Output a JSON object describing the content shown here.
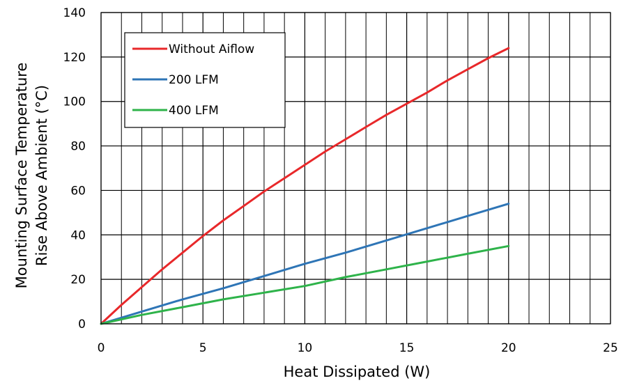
{
  "chart_data": {
    "type": "line",
    "title": "",
    "xlabel": "Heat Dissipated (W)",
    "ylabel_line1": "Mounting Surface Temperature",
    "ylabel_line2": "Rise Above  Ambient (°C)",
    "xlim": [
      0,
      25
    ],
    "ylim": [
      0,
      140
    ],
    "x_major_ticks": [
      0,
      5,
      10,
      15,
      20,
      25
    ],
    "x_minor_step": 1,
    "y_ticks": [
      0,
      20,
      40,
      60,
      80,
      100,
      120,
      140
    ],
    "grid": true,
    "legend_position": "top-left",
    "series": [
      {
        "name": "Without Aiflow",
        "color": "#e8282a",
        "x": [
          0,
          1,
          2,
          3,
          4,
          5,
          6,
          7,
          8,
          9,
          10,
          11,
          12,
          13,
          14,
          15,
          16,
          17,
          18,
          19,
          20
        ],
        "y": [
          0,
          8.5,
          16.5,
          24.5,
          32,
          39.5,
          46.5,
          53,
          59.5,
          65.5,
          71.5,
          77.5,
          83,
          88.5,
          94,
          99,
          104,
          109.5,
          114.5,
          119.5,
          124
        ]
      },
      {
        "name": "200 LFM",
        "color": "#2e75b6",
        "x": [
          0,
          2,
          4,
          6,
          8,
          10,
          12,
          14,
          16,
          18,
          20
        ],
        "y": [
          0,
          5.5,
          11,
          16,
          21.5,
          27,
          32,
          37.5,
          43,
          48.5,
          54
        ]
      },
      {
        "name": "400 LFM",
        "color": "#2eb34a",
        "x": [
          0,
          2,
          4,
          6,
          8,
          10,
          12,
          14,
          16,
          18,
          20
        ],
        "y": [
          0,
          4,
          7.5,
          11,
          14,
          17,
          21,
          24.5,
          28,
          31.5,
          35
        ]
      }
    ]
  }
}
